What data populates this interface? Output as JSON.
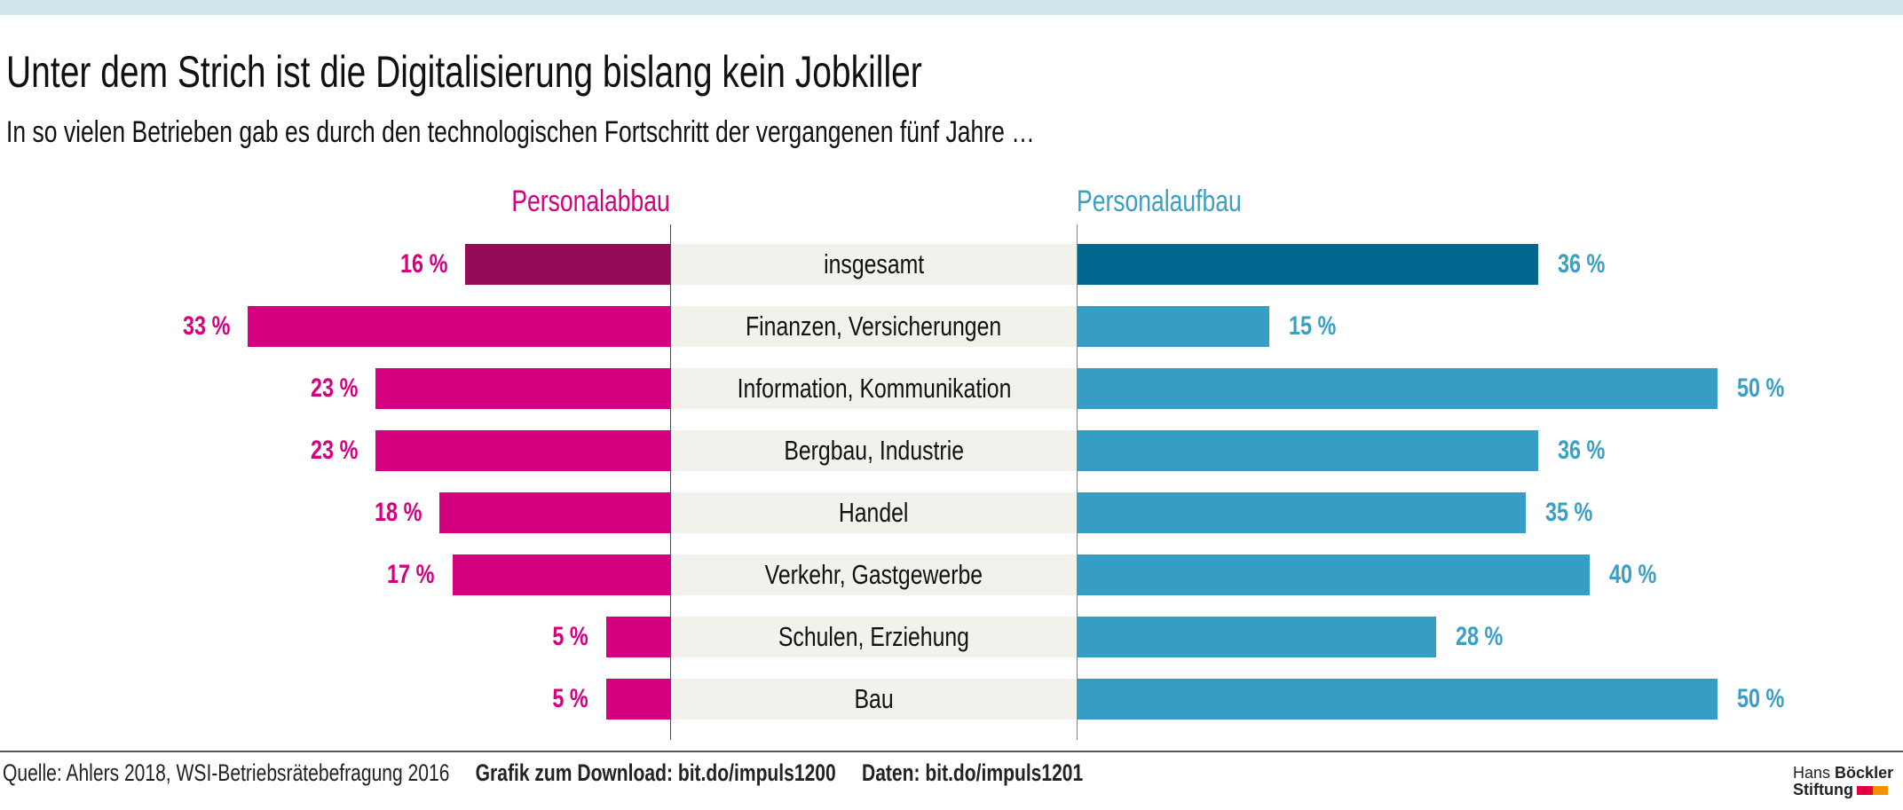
{
  "title": "Unter dem Strich ist die Digitalisierung bislang kein Jobkiller",
  "subtitle": "In so vielen Betrieben gab es durch den technologischen Fortschritt der vergangenen fünf Jahre …",
  "colors": {
    "topbar": "#cfe5ec",
    "abbau_total": "#960b57",
    "abbau": "#d5007f",
    "aufbau_total": "#006790",
    "aufbau": "#369dc4",
    "band": "#f2f1ec"
  },
  "chart_data": {
    "type": "bar",
    "orientation": "horizontal-diverging",
    "categories": [
      "insgesamt",
      "Finanzen, Versicherungen",
      "Information, Kommunikation",
      "Bergbau, Industrie",
      "Handel",
      "Verkehr, Gastgewerbe",
      "Schulen, Erziehung",
      "Bau"
    ],
    "series": [
      {
        "name": "Personalabbau",
        "values": [
          16,
          33,
          23,
          23,
          18,
          17,
          5,
          5
        ],
        "labels": [
          "16 %",
          "33 %",
          "23 %",
          "23 %",
          "18 %",
          "17 %",
          "5 %",
          "5 %"
        ]
      },
      {
        "name": "Personalaufbau",
        "values": [
          36,
          15,
          50,
          36,
          35,
          40,
          28,
          50
        ],
        "labels": [
          "36 %",
          "15 %",
          "50 %",
          "36 %",
          "35 %",
          "40 %",
          "28 %",
          "50 %"
        ]
      }
    ],
    "unit": "%",
    "grid": false
  },
  "footer": {
    "source": "Quelle: Ahlers 2018, WSI-Betriebsrätebefragung 2016",
    "download": "Grafik zum Download: bit.do/impuls1200",
    "data": "Daten: bit.do/impuls1201"
  },
  "logo": {
    "line1a": "Hans",
    "line1b": "Böckler",
    "line2": "Stiftung"
  }
}
